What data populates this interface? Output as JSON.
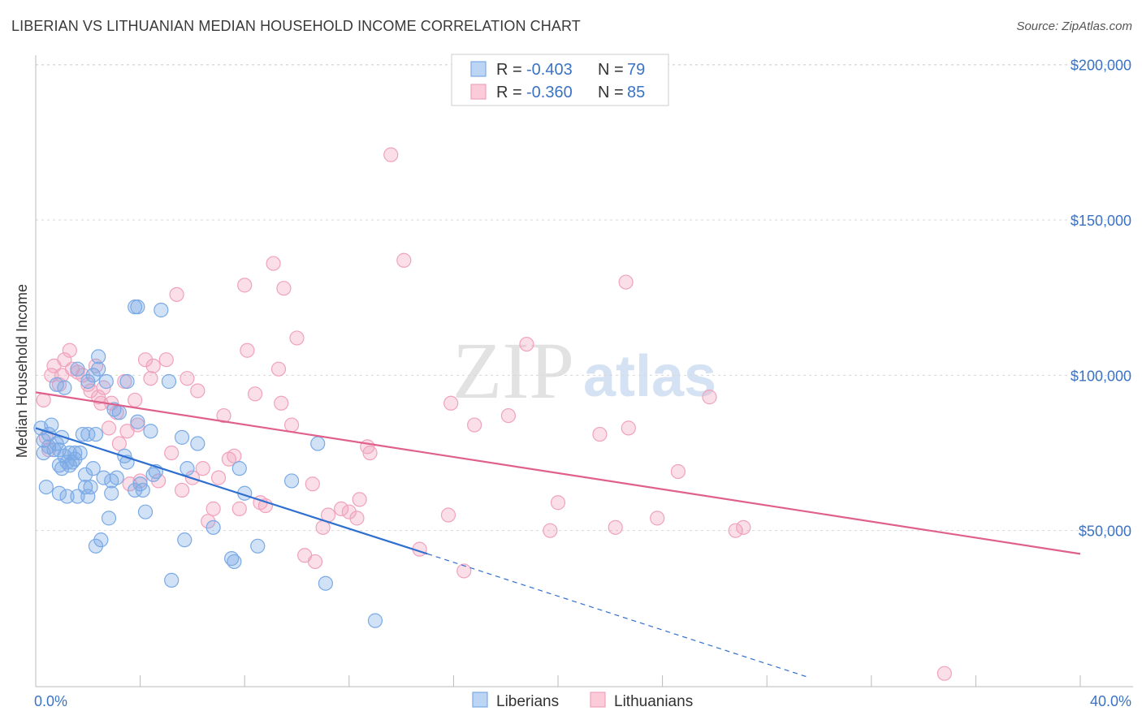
{
  "header": {
    "title": "LIBERIAN VS LITHUANIAN MEDIAN HOUSEHOLD INCOME CORRELATION CHART",
    "source": "Source: ZipAtlas.com"
  },
  "watermark": {
    "zip": "ZIP",
    "atlas": "atlas"
  },
  "colors": {
    "liberians": "#7aaae6",
    "liberians_line": "#2f6fd0",
    "lithuanians": "#f0a2bc",
    "lithuanians_line": "#e0608c",
    "grid": "#d8d8d8",
    "tick_label": "#3b73c4"
  },
  "legend": {
    "rows": [
      {
        "r_label": "R =",
        "r_value": "-0.403",
        "n_label": "N =",
        "n_value": "79"
      },
      {
        "r_label": "R =",
        "r_value": "-0.360",
        "n_label": "N =",
        "n_value": "85"
      }
    ]
  },
  "chart_data": {
    "type": "scatter",
    "title": "LIBERIAN VS LITHUANIAN MEDIAN HOUSEHOLD INCOME CORRELATION CHART",
    "xlabel": "",
    "ylabel": "Median Household Income",
    "xlim": [
      0,
      40
    ],
    "ylim": [
      0,
      210000
    ],
    "x_tick_labels": [
      "0.0%",
      "40.0%"
    ],
    "y_ticks": [
      50000,
      100000,
      150000,
      200000
    ],
    "y_tick_labels": [
      "$50,000",
      "$100,000",
      "$150,000",
      "$200,000"
    ],
    "grid": true,
    "legend_position": "bottom",
    "series": [
      {
        "name": "Liberians",
        "r": -0.403,
        "n": 79,
        "trend": {
          "x0": 0.0,
          "y0": 83000,
          "x1": 15.0,
          "y1": 42500,
          "dash_x1": 29.5,
          "dash_y1": 3000
        },
        "points": [
          [
            0.2,
            83000
          ],
          [
            0.3,
            79000
          ],
          [
            0.3,
            75000
          ],
          [
            0.4,
            64000
          ],
          [
            0.5,
            81000
          ],
          [
            0.5,
            77000
          ],
          [
            0.6,
            84000
          ],
          [
            0.7,
            76000
          ],
          [
            0.8,
            97000
          ],
          [
            0.8,
            78000
          ],
          [
            0.9,
            71000
          ],
          [
            0.9,
            76000
          ],
          [
            1.0,
            80000
          ],
          [
            1.0,
            70000
          ],
          [
            1.1,
            96000
          ],
          [
            1.1,
            74000
          ],
          [
            1.2,
            61000
          ],
          [
            1.3,
            75000
          ],
          [
            1.3,
            71000
          ],
          [
            1.4,
            72000
          ],
          [
            1.5,
            75000
          ],
          [
            1.6,
            61000
          ],
          [
            1.6,
            102000
          ],
          [
            1.7,
            75000
          ],
          [
            1.8,
            81000
          ],
          [
            1.9,
            64000
          ],
          [
            1.9,
            68000
          ],
          [
            2.0,
            81000
          ],
          [
            2.0,
            98000
          ],
          [
            2.1,
            64000
          ],
          [
            2.2,
            100000
          ],
          [
            2.3,
            81000
          ],
          [
            2.3,
            45000
          ],
          [
            2.4,
            102000
          ],
          [
            2.4,
            106000
          ],
          [
            2.5,
            47000
          ],
          [
            2.6,
            67000
          ],
          [
            2.7,
            98000
          ],
          [
            2.8,
            54000
          ],
          [
            2.9,
            62000
          ],
          [
            2.9,
            66000
          ],
          [
            3.0,
            89000
          ],
          [
            3.1,
            67000
          ],
          [
            3.2,
            88000
          ],
          [
            3.5,
            98000
          ],
          [
            3.5,
            72000
          ],
          [
            3.8,
            63000
          ],
          [
            3.9,
            85000
          ],
          [
            4.0,
            65000
          ],
          [
            4.1,
            63000
          ],
          [
            4.2,
            56000
          ],
          [
            4.4,
            82000
          ],
          [
            4.5,
            68000
          ],
          [
            3.8,
            122000
          ],
          [
            3.9,
            122000
          ],
          [
            4.8,
            121000
          ],
          [
            5.1,
            98000
          ],
          [
            5.2,
            34000
          ],
          [
            5.6,
            80000
          ],
          [
            5.7,
            47000
          ],
          [
            5.8,
            70000
          ],
          [
            6.2,
            78000
          ],
          [
            6.8,
            51000
          ],
          [
            7.5,
            41000
          ],
          [
            7.6,
            40000
          ],
          [
            7.8,
            70000
          ],
          [
            8.0,
            62000
          ],
          [
            8.5,
            45000
          ],
          [
            9.8,
            66000
          ],
          [
            10.8,
            78000
          ],
          [
            11.1,
            33000
          ],
          [
            13.0,
            21000
          ],
          [
            1.2,
            72000
          ],
          [
            2.2,
            70000
          ],
          [
            1.5,
            73000
          ],
          [
            0.9,
            62000
          ],
          [
            3.4,
            74000
          ],
          [
            4.6,
            69000
          ],
          [
            2.0,
            61000
          ]
        ]
      },
      {
        "name": "Lithuanians",
        "r": -0.36,
        "n": 85,
        "trend": {
          "x0": 0.0,
          "y0": 94500,
          "x1": 40.0,
          "y1": 42500
        },
        "points": [
          [
            0.3,
            92000
          ],
          [
            0.4,
            80000
          ],
          [
            0.5,
            76000
          ],
          [
            0.6,
            100000
          ],
          [
            0.7,
            103000
          ],
          [
            0.9,
            97000
          ],
          [
            1.0,
            100000
          ],
          [
            1.1,
            105000
          ],
          [
            1.3,
            108000
          ],
          [
            1.4,
            102000
          ],
          [
            1.6,
            101000
          ],
          [
            1.8,
            100000
          ],
          [
            2.0,
            97000
          ],
          [
            2.1,
            95000
          ],
          [
            2.3,
            103000
          ],
          [
            2.4,
            93000
          ],
          [
            2.5,
            91000
          ],
          [
            2.6,
            96000
          ],
          [
            2.8,
            83000
          ],
          [
            2.9,
            91000
          ],
          [
            3.1,
            88000
          ],
          [
            3.2,
            78000
          ],
          [
            3.4,
            98000
          ],
          [
            3.5,
            82000
          ],
          [
            3.6,
            65000
          ],
          [
            3.8,
            92000
          ],
          [
            3.9,
            84000
          ],
          [
            4.0,
            66000
          ],
          [
            4.2,
            105000
          ],
          [
            4.4,
            99000
          ],
          [
            4.5,
            103000
          ],
          [
            4.7,
            66000
          ],
          [
            5.0,
            105000
          ],
          [
            5.2,
            75000
          ],
          [
            5.4,
            126000
          ],
          [
            5.6,
            63000
          ],
          [
            5.8,
            99000
          ],
          [
            6.0,
            67000
          ],
          [
            6.2,
            95000
          ],
          [
            6.4,
            70000
          ],
          [
            6.6,
            53000
          ],
          [
            6.8,
            57000
          ],
          [
            7.0,
            67000
          ],
          [
            7.2,
            87000
          ],
          [
            7.4,
            73000
          ],
          [
            7.6,
            74000
          ],
          [
            7.8,
            57000
          ],
          [
            8.0,
            129000
          ],
          [
            8.1,
            108000
          ],
          [
            8.4,
            94000
          ],
          [
            8.6,
            59000
          ],
          [
            8.8,
            58000
          ],
          [
            9.1,
            136000
          ],
          [
            9.3,
            102000
          ],
          [
            9.4,
            91000
          ],
          [
            9.5,
            128000
          ],
          [
            9.8,
            84000
          ],
          [
            10.0,
            112000
          ],
          [
            10.3,
            42000
          ],
          [
            10.6,
            65000
          ],
          [
            10.7,
            40000
          ],
          [
            11.0,
            51000
          ],
          [
            11.2,
            55000
          ],
          [
            11.7,
            57000
          ],
          [
            12.0,
            56000
          ],
          [
            12.3,
            54000
          ],
          [
            12.4,
            60000
          ],
          [
            12.7,
            77000
          ],
          [
            12.8,
            75000
          ],
          [
            13.6,
            171000
          ],
          [
            14.1,
            137000
          ],
          [
            14.7,
            44000
          ],
          [
            15.8,
            55000
          ],
          [
            15.9,
            91000
          ],
          [
            16.4,
            37000
          ],
          [
            16.8,
            84000
          ],
          [
            18.1,
            87000
          ],
          [
            18.8,
            110000
          ],
          [
            19.7,
            50000
          ],
          [
            20.0,
            59000
          ],
          [
            21.6,
            81000
          ],
          [
            22.2,
            51000
          ],
          [
            22.6,
            130000
          ],
          [
            22.7,
            83000
          ],
          [
            23.8,
            54000
          ]
        ],
        "points_extra": [
          [
            24.6,
            69000
          ],
          [
            25.8,
            93000
          ],
          [
            26.8,
            50000
          ],
          [
            27.1,
            51000
          ],
          [
            34.8,
            4000
          ]
        ]
      }
    ]
  }
}
